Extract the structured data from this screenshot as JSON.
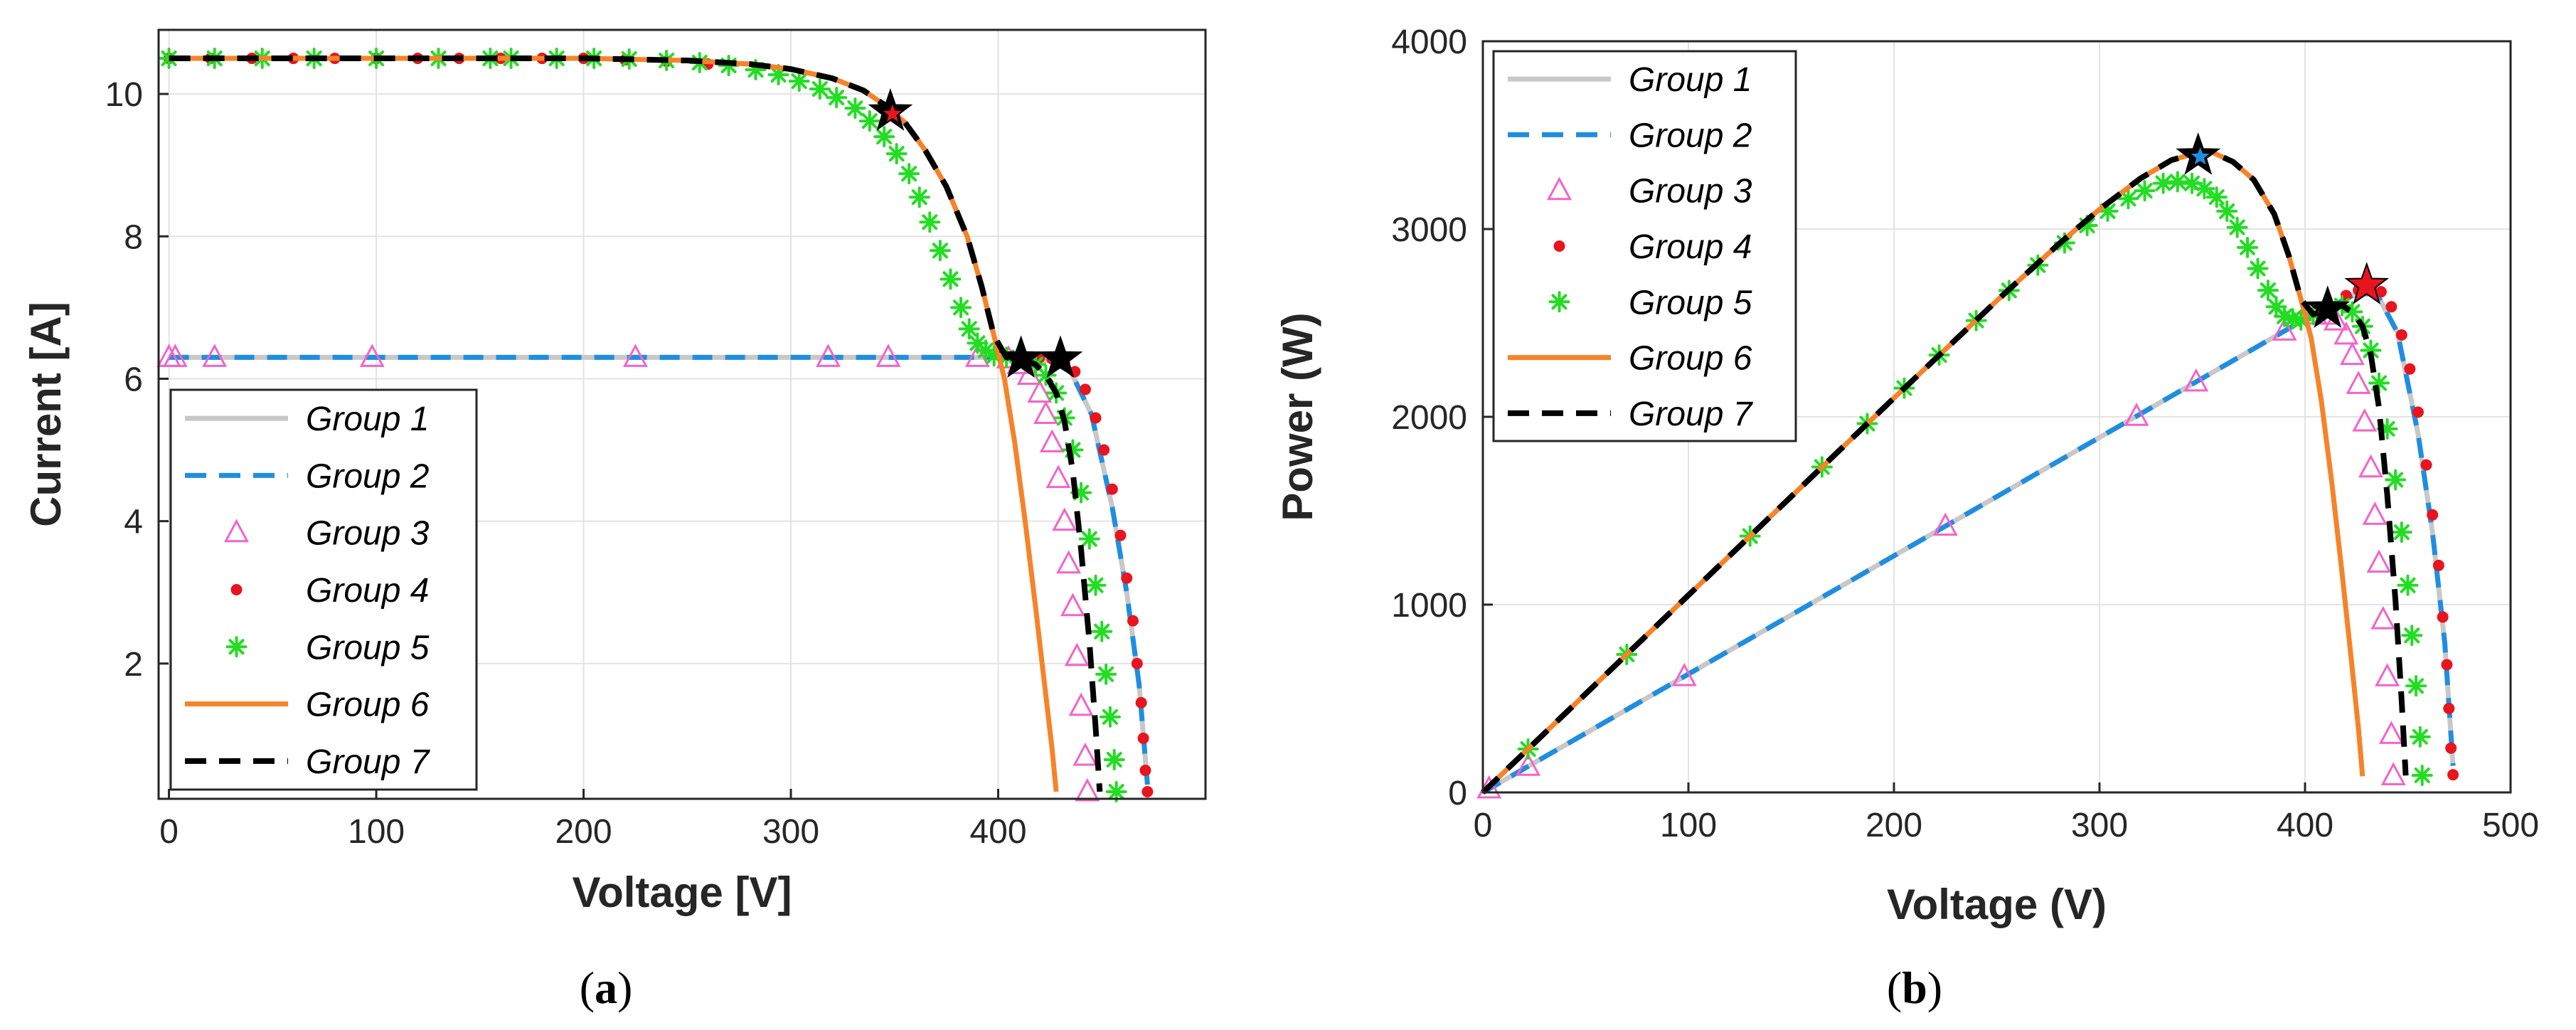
{
  "colors": {
    "group1": "#c8c8c8",
    "group2": "#1f8ee0",
    "group3": "#f264c8",
    "group4": "#e8141e",
    "group5": "#22dd22",
    "group6": "#f5832a",
    "group7": "#000000",
    "grid": "#e3e3e3",
    "axis": "#262626"
  },
  "captions": {
    "a_prefix": "(",
    "a_letter": "a",
    "a_suffix": ")",
    "b_prefix": "(",
    "b_letter": "b",
    "b_suffix": ")"
  },
  "chart_data": [
    {
      "type": "line",
      "panel": "a",
      "xlabel": "Voltage [V]",
      "ylabel": "Current [A]",
      "xlim": [
        -5,
        500
      ],
      "ylim": [
        0.1,
        10.9
      ],
      "xticks": [
        0,
        100,
        200,
        300,
        400
      ],
      "yticks": [
        2,
        4,
        6,
        8,
        10
      ],
      "grid": true,
      "legend_position": "lower-left",
      "legend": [
        {
          "name": "Group 1",
          "style": "solid",
          "color_key": "group1"
        },
        {
          "name": "Group 2",
          "style": "dashed",
          "color_key": "group2"
        },
        {
          "name": "Group 3",
          "style": "triangle",
          "color_key": "group3"
        },
        {
          "name": "Group 4",
          "style": "dot",
          "color_key": "group4"
        },
        {
          "name": "Group 5",
          "style": "star",
          "color_key": "group5"
        },
        {
          "name": "Group 6",
          "style": "solid",
          "color_key": "group6"
        },
        {
          "name": "Group 7",
          "style": "dashed",
          "color_key": "group7"
        }
      ],
      "series": [
        {
          "name": "Group 1",
          "color_key": "group1",
          "line": "solid",
          "x": [
            0,
            100,
            200,
            300,
            400,
            425,
            435,
            445,
            455,
            462,
            468,
            472
          ],
          "y": [
            6.3,
            6.3,
            6.3,
            6.3,
            6.3,
            6.25,
            6.1,
            5.5,
            4.2,
            3.0,
            1.7,
            0.3
          ]
        },
        {
          "name": "Group 2",
          "color_key": "group2",
          "line": "dashed",
          "x": [
            0,
            100,
            200,
            300,
            400,
            425,
            435,
            445,
            455,
            462,
            468,
            472
          ],
          "y": [
            6.3,
            6.3,
            6.3,
            6.3,
            6.3,
            6.25,
            6.1,
            5.5,
            4.2,
            3.0,
            1.7,
            0.3
          ]
        },
        {
          "name": "Group 3",
          "color_key": "group3",
          "line": "markers",
          "x": [
            0,
            3,
            22,
            98,
            225,
            318,
            347,
            390,
            405,
            410,
            415,
            420,
            423,
            426,
            429,
            432,
            434,
            436,
            438,
            440,
            442,
            443
          ],
          "y": [
            6.3,
            6.3,
            6.3,
            6.3,
            6.3,
            6.3,
            6.3,
            6.3,
            6.28,
            6.2,
            6.05,
            5.8,
            5.5,
            5.1,
            4.6,
            4.0,
            3.4,
            2.8,
            2.1,
            1.4,
            0.7,
            0.2
          ]
        },
        {
          "name": "Group 4",
          "color_key": "group4",
          "line": "markers",
          "x": [
            0,
            20,
            40,
            60,
            80,
            100,
            120,
            140,
            160,
            180,
            200,
            220,
            240,
            260,
            420,
            426,
            432,
            437,
            442,
            447,
            451,
            455,
            459,
            462,
            465,
            467,
            469,
            470,
            471,
            472
          ],
          "y": [
            10.5,
            10.5,
            10.5,
            10.5,
            10.5,
            10.5,
            10.5,
            10.5,
            10.5,
            10.5,
            10.5,
            10.48,
            10.46,
            10.42,
            6.3,
            6.28,
            6.22,
            6.1,
            5.85,
            5.45,
            5.0,
            4.45,
            3.8,
            3.2,
            2.6,
            2.0,
            1.45,
            0.95,
            0.5,
            0.2
          ]
        },
        {
          "name": "Group 5",
          "color_key": "group5",
          "line": "markers",
          "x": [
            0,
            22,
            45,
            70,
            100,
            130,
            155,
            165,
            187,
            205,
            222,
            240,
            256,
            270,
            283,
            294,
            304,
            314,
            322,
            331,
            338,
            345,
            351,
            357,
            362,
            367,
            372,
            377,
            382,
            386,
            390,
            394,
            398,
            404,
            412,
            418,
            423,
            428,
            432,
            436,
            440,
            444,
            447,
            450,
            452,
            454,
            456,
            457
          ],
          "y": [
            10.5,
            10.5,
            10.5,
            10.5,
            10.5,
            10.5,
            10.5,
            10.5,
            10.5,
            10.5,
            10.49,
            10.47,
            10.44,
            10.4,
            10.34,
            10.27,
            10.18,
            10.07,
            9.95,
            9.8,
            9.62,
            9.4,
            9.16,
            8.88,
            8.55,
            8.2,
            7.8,
            7.4,
            7.0,
            6.7,
            6.5,
            6.4,
            6.32,
            6.3,
            6.27,
            6.2,
            6.05,
            5.8,
            5.45,
            5.0,
            4.4,
            3.75,
            3.1,
            2.45,
            1.85,
            1.25,
            0.65,
            0.2
          ]
        },
        {
          "name": "Group 6",
          "color_key": "group6",
          "line": "solid",
          "x": [
            0,
            100,
            200,
            250,
            280,
            300,
            320,
            335,
            345,
            355,
            365,
            375,
            385,
            392,
            398,
            403,
            408,
            413,
            418,
            422,
            426,
            428
          ],
          "y": [
            10.5,
            10.5,
            10.5,
            10.47,
            10.42,
            10.35,
            10.22,
            10.05,
            9.85,
            9.6,
            9.2,
            8.7,
            8.0,
            7.3,
            6.6,
            6.0,
            5.1,
            4.0,
            2.8,
            1.8,
            0.8,
            0.2
          ]
        },
        {
          "name": "Group 7",
          "color_key": "group7",
          "line": "dashed",
          "x": [
            0,
            100,
            200,
            250,
            280,
            300,
            320,
            335,
            345,
            355,
            365,
            375,
            385,
            392,
            398,
            404,
            412,
            418,
            423,
            428,
            432,
            436,
            440,
            444,
            447,
            449
          ],
          "y": [
            10.5,
            10.5,
            10.5,
            10.47,
            10.42,
            10.35,
            10.22,
            10.05,
            9.85,
            9.6,
            9.2,
            8.7,
            8.0,
            7.3,
            6.6,
            6.3,
            6.27,
            6.2,
            6.05,
            5.8,
            5.4,
            4.7,
            3.6,
            2.3,
            1.1,
            0.2
          ]
        }
      ],
      "mpp_markers": [
        {
          "x": 348,
          "y": 9.75,
          "color_key": "group7"
        },
        {
          "x": 349,
          "y": 9.72,
          "color_key": "group4"
        },
        {
          "x": 411,
          "y": 6.28,
          "color_key": "group7"
        },
        {
          "x": 430,
          "y": 6.28,
          "color_key": "group7"
        }
      ]
    },
    {
      "type": "line",
      "panel": "b",
      "xlabel": "Voltage (V)",
      "ylabel": "Power (W)",
      "xlim": [
        0,
        500
      ],
      "ylim": [
        0,
        4000
      ],
      "xticks": [
        0,
        100,
        200,
        300,
        400,
        500
      ],
      "yticks": [
        0,
        1000,
        2000,
        3000,
        4000
      ],
      "grid": true,
      "legend_position": "top-left",
      "legend": [
        {
          "name": "Group 1",
          "style": "solid",
          "color_key": "group1"
        },
        {
          "name": "Group 2",
          "style": "dashed",
          "color_key": "group2"
        },
        {
          "name": "Group 3",
          "style": "triangle",
          "color_key": "group3"
        },
        {
          "name": "Group 4",
          "style": "dot",
          "color_key": "group4"
        },
        {
          "name": "Group 5",
          "style": "star",
          "color_key": "group5"
        },
        {
          "name": "Group 6",
          "style": "solid",
          "color_key": "group6"
        },
        {
          "name": "Group 7",
          "style": "dashed",
          "color_key": "group7"
        }
      ],
      "series": [
        {
          "name": "Group 1",
          "color_key": "group1",
          "line": "solid",
          "x": [
            0,
            100,
            200,
            300,
            400,
            425,
            435,
            445,
            455,
            462,
            468,
            472
          ],
          "y": [
            0,
            630,
            1260,
            1890,
            2520,
            2656,
            2654,
            2448,
            1911,
            1386,
            796,
            142
          ]
        },
        {
          "name": "Group 2",
          "color_key": "group2",
          "line": "dashed",
          "x": [
            0,
            100,
            200,
            300,
            400,
            425,
            435,
            445,
            455,
            462,
            468,
            472
          ],
          "y": [
            0,
            630,
            1260,
            1890,
            2520,
            2656,
            2654,
            2448,
            1911,
            1386,
            796,
            142
          ]
        },
        {
          "name": "Group 3",
          "color_key": "group3",
          "line": "markers",
          "x": [
            3,
            22,
            98,
            225,
            318,
            347,
            390,
            405,
            410,
            415,
            420,
            423,
            426,
            429,
            432,
            434,
            436,
            438,
            440,
            442,
            443
          ],
          "y": [
            19,
            139,
            617,
            1418,
            2003,
            2186,
            2457,
            2543,
            2542,
            2511,
            2436,
            2327,
            2173,
            1973,
            1728,
            1476,
            1221,
            920,
            616,
            309,
            89
          ]
        },
        {
          "name": "Group 4",
          "color_key": "group4",
          "line": "markers",
          "x": [
            420,
            426,
            432,
            437,
            442,
            447,
            451,
            455,
            459,
            462,
            465,
            467,
            469,
            470,
            471,
            472
          ],
          "y": [
            2646,
            2675,
            2687,
            2666,
            2586,
            2436,
            2255,
            2025,
            1744,
            1478,
            1209,
            934,
            680,
            447,
            236,
            94
          ]
        },
        {
          "name": "Group 5",
          "color_key": "group5",
          "line": "markers",
          "x": [
            22,
            70,
            130,
            165,
            187,
            205,
            222,
            240,
            256,
            270,
            283,
            294,
            304,
            314,
            322,
            331,
            338,
            345,
            351,
            357,
            362,
            367,
            372,
            377,
            382,
            386,
            390,
            394,
            398,
            404,
            412,
            418,
            423,
            428,
            432,
            436,
            440,
            444,
            447,
            450,
            452,
            454,
            456,
            457
          ],
          "y": [
            231,
            735,
            1365,
            1733,
            1964,
            2153,
            2329,
            2513,
            2673,
            2808,
            2926,
            3019,
            3095,
            3162,
            3204,
            3244,
            3252,
            3243,
            3215,
            3170,
            3095,
            3009,
            2902,
            2790,
            2674,
            2586,
            2535,
            2522,
            2515,
            2545,
            2583,
            2592,
            2559,
            2482,
            2354,
            2180,
            1936,
            1665,
            1386,
            1103,
            836,
            567,
            296,
            91
          ]
        },
        {
          "name": "Group 6",
          "color_key": "group6",
          "line": "solid",
          "x": [
            0,
            100,
            200,
            250,
            280,
            300,
            320,
            335,
            345,
            355,
            365,
            375,
            385,
            392,
            398,
            403,
            408,
            413,
            418,
            422,
            426,
            428
          ],
          "y": [
            0,
            1050,
            2100,
            2618,
            2918,
            3105,
            3270,
            3367,
            3398,
            3408,
            3358,
            3263,
            3080,
            2862,
            2627,
            2418,
            2081,
            1652,
            1170,
            760,
            341,
            86
          ]
        },
        {
          "name": "Group 7",
          "color_key": "group7",
          "line": "dashed",
          "x": [
            0,
            100,
            200,
            250,
            280,
            300,
            320,
            335,
            345,
            355,
            365,
            375,
            385,
            392,
            398,
            404,
            412,
            418,
            423,
            428,
            432,
            436,
            440,
            444,
            447,
            449
          ],
          "y": [
            0,
            1050,
            2100,
            2618,
            2918,
            3105,
            3270,
            3367,
            3398,
            3408,
            3358,
            3263,
            3080,
            2862,
            2627,
            2545,
            2583,
            2592,
            2559,
            2482,
            2333,
            2049,
            1584,
            1021,
            492,
            90
          ]
        }
      ],
      "mpp_markers": [
        {
          "x": 348,
          "y": 3390,
          "color_key": "group7"
        },
        {
          "x": 349,
          "y": 3385,
          "color_key": "group2"
        },
        {
          "x": 411,
          "y": 2575,
          "color_key": "group7"
        },
        {
          "x": 430,
          "y": 2700,
          "color_key": "group4"
        }
      ]
    }
  ]
}
